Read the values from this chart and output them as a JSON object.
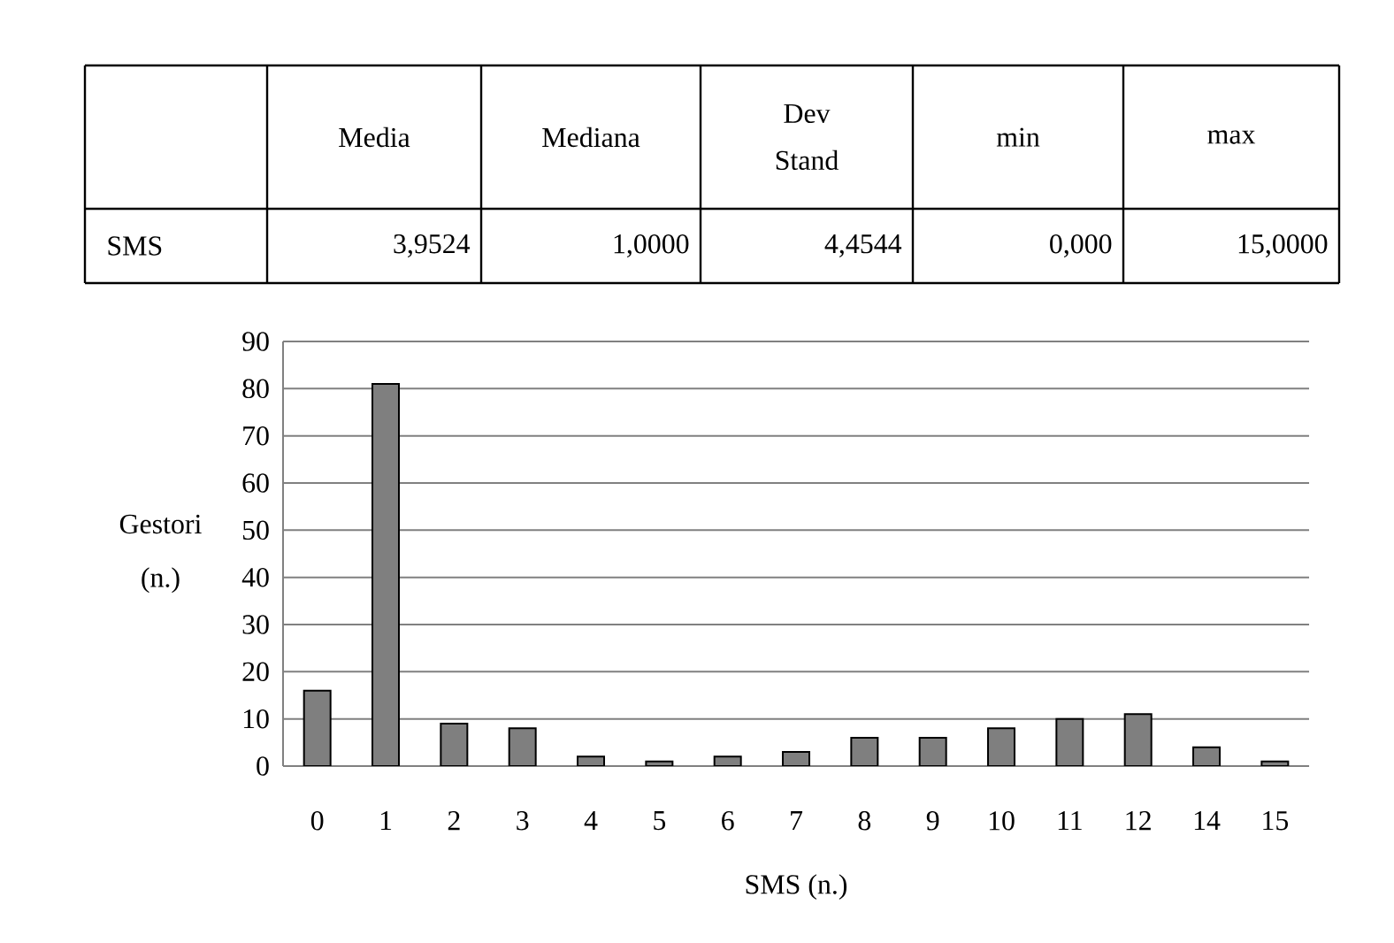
{
  "chart_data": {
    "type": "bar",
    "xlabel": "SMS (n.)",
    "ylabel": "Gestori (n.)",
    "categories": [
      "0",
      "1",
      "2",
      "3",
      "4",
      "5",
      "6",
      "7",
      "8",
      "9",
      "10",
      "11",
      "12",
      "14",
      "15"
    ],
    "values": [
      16,
      81,
      9,
      8,
      2,
      1,
      2,
      3,
      6,
      6,
      8,
      10,
      11,
      4,
      1
    ],
    "color": "#7f7f7f",
    "ylim": [
      0,
      90
    ],
    "yticks": [
      0,
      10,
      20,
      30,
      40,
      50,
      60,
      70,
      80,
      90
    ],
    "grid": "y",
    "annotations": [
      "Media",
      "Mediana",
      "Dev Stand",
      "min",
      "max",
      "SMS",
      "3,9524",
      "1,0000",
      "4,4544",
      "0,000",
      "15,0000"
    ]
  }
}
